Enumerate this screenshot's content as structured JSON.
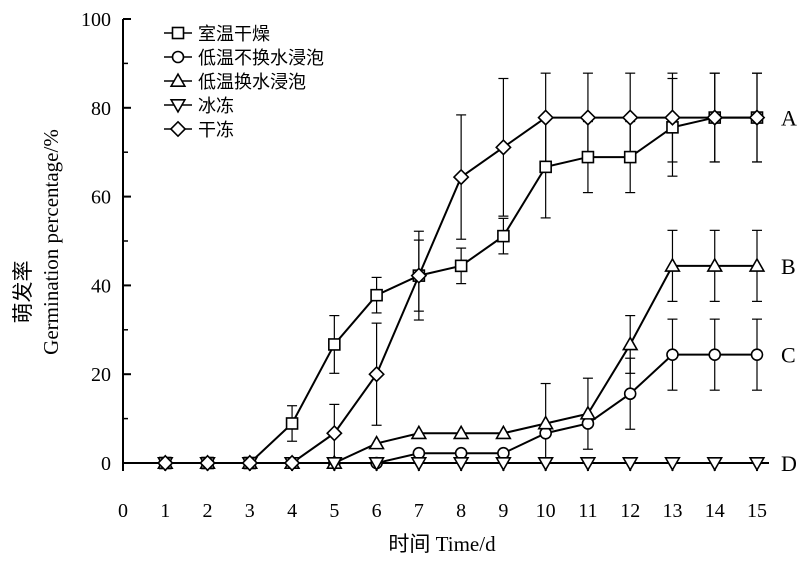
{
  "chart_data": {
    "type": "line",
    "xlabel": "时间 Time/d",
    "ylabel": "萌发率",
    "ylabel2": "Germination percentage/%",
    "xlim": [
      0,
      15
    ],
    "ylim": [
      0,
      100
    ],
    "xticks": [
      0,
      1,
      2,
      3,
      4,
      5,
      6,
      7,
      8,
      9,
      10,
      11,
      12,
      13,
      14,
      15
    ],
    "yticks": [
      0,
      20,
      40,
      60,
      80,
      100
    ],
    "grid": false,
    "legend_position": "top-left",
    "x": [
      1,
      2,
      3,
      4,
      5,
      6,
      7,
      8,
      9,
      10,
      11,
      12,
      13,
      14,
      15
    ],
    "series": [
      {
        "name": "室温干燥",
        "marker": "square",
        "values": [
          0,
          0,
          0,
          8.9,
          26.7,
          37.8,
          42.2,
          44.4,
          51.1,
          66.7,
          68.9,
          68.9,
          75.6,
          77.8,
          77.8
        ],
        "errors": [
          0,
          0,
          0,
          4,
          6.5,
          4,
          10,
          4,
          4,
          11.5,
          8,
          8,
          11,
          10,
          10
        ]
      },
      {
        "name": "低温不换水浸泡",
        "marker": "circle",
        "values": [
          0,
          0,
          0,
          0,
          0,
          0,
          2.2,
          2.2,
          2.2,
          6.7,
          8.9,
          15.6,
          24.4,
          24.4,
          24.4
        ],
        "errors": [
          0,
          0,
          0,
          0,
          0,
          0,
          0,
          0,
          0,
          0,
          0,
          8,
          8,
          8,
          8
        ]
      },
      {
        "name": "低温换水浸泡",
        "marker": "triangle-up",
        "values": [
          0,
          0,
          0,
          0,
          0,
          4.4,
          6.7,
          6.7,
          6.7,
          8.9,
          11.1,
          26.7,
          44.4,
          44.4,
          44.4
        ],
        "errors": [
          0,
          0,
          0,
          0,
          0,
          0,
          0,
          0,
          0,
          9,
          8,
          6.5,
          8,
          8,
          8
        ]
      },
      {
        "name": "冰冻",
        "marker": "triangle-down",
        "values": [
          0,
          0,
          0,
          0,
          0,
          0,
          0,
          0,
          0,
          0,
          0,
          0,
          0,
          0,
          0
        ],
        "errors": [
          0,
          0,
          0,
          0,
          0,
          0,
          0,
          0,
          0,
          0,
          0,
          0,
          0,
          0,
          0
        ]
      },
      {
        "name": "干冻",
        "marker": "diamond",
        "values": [
          0,
          0,
          0,
          0,
          6.7,
          20,
          42.2,
          64.4,
          71.1,
          77.8,
          77.8,
          77.8,
          77.8,
          77.8,
          77.8
        ],
        "errors": [
          0,
          0,
          0,
          0,
          6.5,
          11.5,
          8,
          14,
          15.5,
          10,
          10,
          10,
          10,
          10,
          10
        ]
      }
    ],
    "group_labels": [
      "A",
      "B",
      "C",
      "D"
    ]
  }
}
